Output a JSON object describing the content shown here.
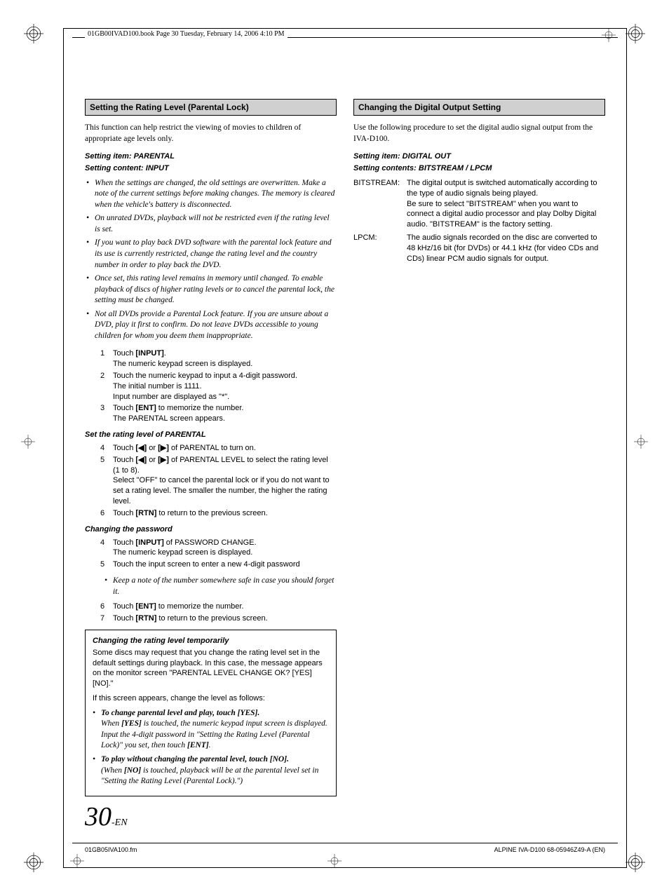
{
  "header": "01GB00IVAD100.book  Page 30  Tuesday, February 14, 2006  4:10 PM",
  "left": {
    "heading": "Setting the Rating Level (Parental Lock)",
    "intro": "This function can help restrict the viewing of movies to children of appropriate age levels only.",
    "setting1": "Setting item: PARENTAL",
    "setting2": "Setting content: INPUT",
    "bullets": [
      "When the settings are changed, the old settings are overwritten. Make a note of the current settings before making changes. The memory is cleared when the vehicle's battery is disconnected.",
      "On unrated DVDs, playback will not be restricted even if the rating level is set.",
      "If you want to play back DVD software with the parental lock feature and its use is currently restricted, change the rating level and the country number in order to play back the DVD.",
      "Once set, this rating level remains in memory until changed. To enable playback of discs of higher rating levels or to cancel the parental lock, the setting must be changed.",
      "Not all DVDs provide a Parental Lock feature. If you are unsure about a DVD, play it first to confirm. Do not leave DVDs accessible to young children for whom you deem them inappropriate."
    ],
    "steps1": [
      {
        "n": "1",
        "t": "Touch <b>[INPUT]</b>.<br>The numeric keypad screen is displayed."
      },
      {
        "n": "2",
        "t": "Touch the numeric keypad to input a 4-digit password.<br>The initial number is 1111.<br>Input number are displayed as \"*\"."
      },
      {
        "n": "3",
        "t": "Touch <b>[ENT]</b> to memorize the number.<br>The PARENTAL screen appears."
      }
    ],
    "sub1": "Set the rating level of PARENTAL",
    "steps2": [
      {
        "n": "4",
        "t": "Touch <b>[◀]</b> or <b>[▶]</b> of PARENTAL to turn on."
      },
      {
        "n": "5",
        "t": "Touch <b>[◀]</b> or <b>[▶]</b> of PARENTAL LEVEL to select the rating level (1 to 8).<br>Select \"OFF\" to cancel the parental lock or if you do not want to set a rating level. The smaller the number, the higher the rating level."
      },
      {
        "n": "6",
        "t": "Touch <b>[RTN]</b> to return to the previous screen."
      }
    ],
    "sub2": "Changing the password",
    "steps3": [
      {
        "n": "4",
        "t": "Touch <b>[INPUT]</b> of PASSWORD CHANGE.<br>The numeric keypad screen is displayed."
      },
      {
        "n": "5",
        "t": "Touch the input screen to enter a new 4-digit password"
      }
    ],
    "note": "Keep a note of the number somewhere safe in case you should forget it.",
    "steps4": [
      {
        "n": "6",
        "t": "Touch <b>[ENT]</b> to memorize the number."
      },
      {
        "n": "7",
        "t": "Touch <b>[RTN]</b> to return to the previous screen."
      }
    ],
    "box": {
      "heading": "Changing the rating level temporarily",
      "p1": "Some discs may request that you change the rating level set in the default settings during playback.  In this case, the message appears on the monitor screen \"PARENTAL LEVEL CHANGE OK? [YES] [NO].\"",
      "p2": "If this screen appears, change the level as follows:",
      "bullets": [
        "<b>To change parental level and play, touch [YES].</b><br><i>When <b>[YES]</b> is touched, the numeric keypad input screen is displayed. Input the 4-digit password in \"Setting the Rating Level (Parental Lock)\" you set, then touch <b>[ENT]</b>.</i>",
        "<b>To play without changing the parental level, touch [NO].</b><br><i>(When <b>[NO]</b> is touched, playback will be at the parental level set in \"Setting the Rating Level (Parental Lock).\")</i>"
      ]
    }
  },
  "right": {
    "heading": "Changing the Digital Output Setting",
    "intro": "Use the following procedure to set the digital audio signal output from the IVA-D100.",
    "setting1": "Setting item: DIGITAL OUT",
    "setting2": "Setting contents: BITSTREAM / LPCM",
    "defs": [
      {
        "label": "BITSTREAM:",
        "desc": "The digital output is switched automatically according to the type of audio signals being played.<br>Be sure to select \"BITSTREAM\" when you want to connect a digital audio processor and play Dolby Digital audio.  \"BITSTREAM\" is the factory setting."
      },
      {
        "label": "LPCM:",
        "desc": "The audio signals recorded on the disc are converted to 48 kHz/16 bit (for DVDs) or 44.1 kHz (for video CDs and CDs) linear PCM audio signals for output."
      }
    ]
  },
  "page_num": "30",
  "page_suffix": "-EN",
  "footer_left": "01GB05IVA100.fm",
  "footer_right": "ALPINE IVA-D100 68-05946Z49-A (EN)"
}
